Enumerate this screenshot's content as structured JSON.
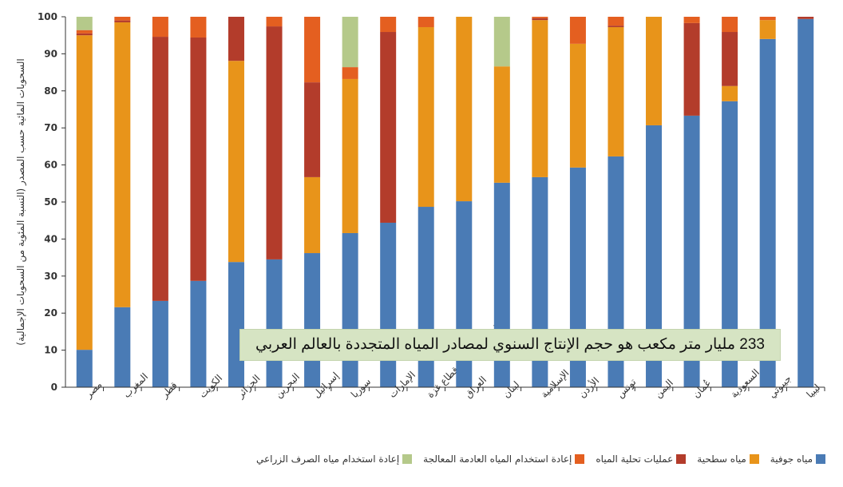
{
  "chart_data": {
    "type": "bar",
    "stacked": true,
    "ylabel": "السحوبات المائية حسب المصدر (النسبة المئوية من السحوبات الإجمالية)",
    "ylim": [
      0,
      100
    ],
    "yticks": [
      0,
      10,
      20,
      30,
      40,
      50,
      60,
      70,
      80,
      90,
      100
    ],
    "legend_position": "bottom",
    "categories": [
      "مصر",
      "المغرب",
      "قطر",
      "الكويت",
      "الجزائر",
      "البحرين",
      "إسرائيل",
      "سوريا",
      "الإمارات",
      "الضفة الغربية وقطاع غزة",
      "العراق",
      "لبنان",
      "جمهورية إيران الإسلامية",
      "الأردن",
      "تونس",
      "اليمن",
      "عُمان",
      "السعودية",
      "جيبوتي",
      "ليبيا"
    ],
    "series": [
      {
        "name": "مياه جوفية",
        "color": "#4a7bb5",
        "values": [
          10.1,
          21.6,
          23.3,
          28.7,
          33.8,
          34.5,
          36.2,
          41.6,
          44.4,
          48.7,
          50.2,
          55.2,
          56.7,
          59.3,
          62.3,
          70.7,
          73.3,
          77.2,
          94.0,
          99.4
        ]
      },
      {
        "name": "مياه سطحية",
        "color": "#e8941a",
        "values": [
          84.9,
          76.9,
          0,
          0,
          54.3,
          0,
          20.5,
          41.6,
          0,
          48.5,
          49.8,
          31.4,
          42.4,
          33.4,
          34.9,
          29.3,
          0,
          4.1,
          5.1,
          0
        ]
      },
      {
        "name": "عمليات تحلية المياه",
        "color": "#b33c2b",
        "values": [
          0.5,
          0.5,
          71.3,
          65.7,
          11.9,
          62.9,
          25.6,
          0,
          51.5,
          0,
          0,
          0,
          0.5,
          0,
          0.4,
          0,
          25.0,
          14.6,
          0,
          0.6
        ]
      },
      {
        "name": "إعادة استخدام المياه العادمة المعالجة",
        "color": "#e45f20",
        "values": [
          0.9,
          1.0,
          5.4,
          5.6,
          0,
          2.6,
          17.7,
          3.2,
          4.1,
          2.8,
          0,
          0,
          0.4,
          7.3,
          2.4,
          0,
          1.7,
          4.1,
          0.9,
          0
        ]
      },
      {
        "name": "إعادة استخدام مياه الصرف الزراعي",
        "color": "#b5c98a",
        "values": [
          3.6,
          0,
          0,
          0,
          0,
          0,
          0,
          13.6,
          0,
          0,
          0,
          13.4,
          0,
          0,
          0,
          0,
          0,
          0,
          0,
          0
        ]
      }
    ],
    "annotation": "233 مليار متر مكعب هو حجم الإنتاج السنوي لمصادر المياه المتجددة بالعالم العربي"
  }
}
